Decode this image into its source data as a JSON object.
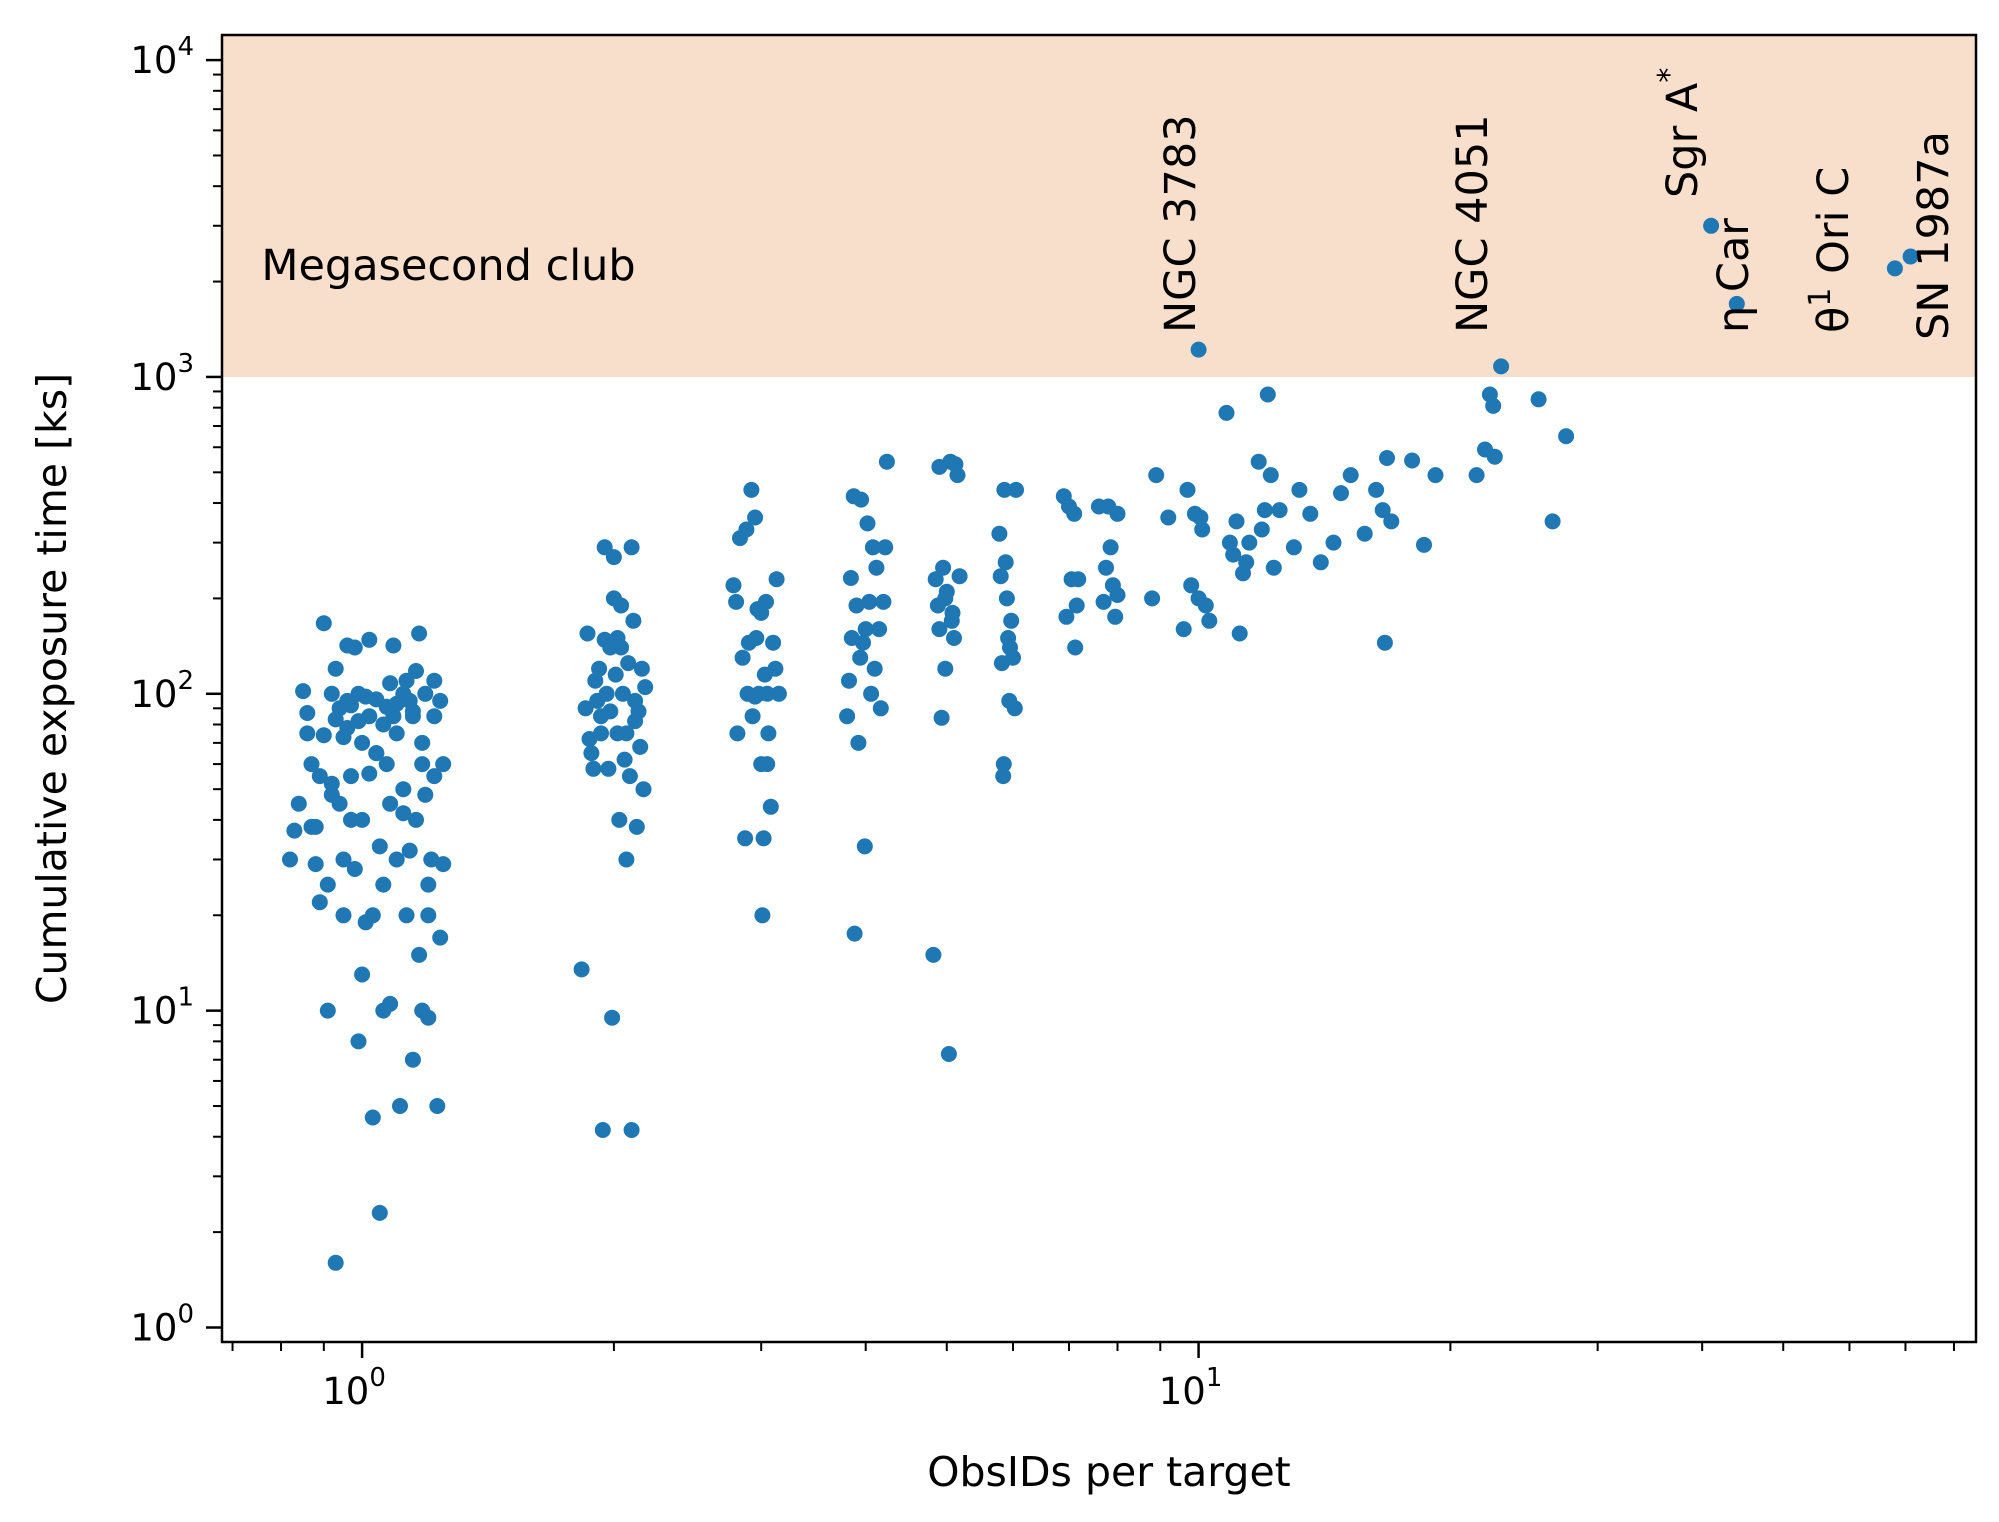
{
  "chart_data": {
    "type": "scatter",
    "xlabel": "ObsIDs per target",
    "ylabel": "Cumulative exposure time [ks]",
    "x_scale": "log",
    "y_scale": "log",
    "xlim": [
      0.68,
      85
    ],
    "ylim": [
      0.9,
      12000
    ],
    "grid": false,
    "marker_color": "#1f77b4",
    "x_ticks": [
      {
        "value": 1,
        "base": "10",
        "exp": "0"
      },
      {
        "value": 10,
        "base": "10",
        "exp": "1"
      }
    ],
    "y_ticks": [
      {
        "value": 1,
        "base": "10",
        "exp": "0"
      },
      {
        "value": 10,
        "base": "10",
        "exp": "1"
      },
      {
        "value": 100,
        "base": "10",
        "exp": "2"
      },
      {
        "value": 1000,
        "base": "10",
        "exp": "3"
      },
      {
        "value": 10000,
        "base": "10",
        "exp": "4"
      }
    ],
    "shaded_region": {
      "label": "Megasecond club",
      "y_from": 1000,
      "color": "#f7dfcc"
    },
    "annotations": [
      {
        "label": "NGC 3783",
        "x": 10.0,
        "y": 1220
      },
      {
        "label": "NGC 4051",
        "x": 23.0,
        "y": 1080
      },
      {
        "label": "Sgr A",
        "superscript": "*",
        "x": 41.0,
        "y": 3000
      },
      {
        "label": "η Car",
        "x": 44.0,
        "y": 1700
      },
      {
        "label": "θ",
        "superscript": "1",
        "suffix": " Ori C",
        "x": 68.0,
        "y": 2200
      },
      {
        "label": "SN 1987a",
        "x": 71.0,
        "y": 2400
      }
    ],
    "points": [
      [
        0.82,
        30
      ],
      [
        0.83,
        37
      ],
      [
        0.84,
        45
      ],
      [
        0.85,
        102
      ],
      [
        0.86,
        87
      ],
      [
        0.86,
        75
      ],
      [
        0.87,
        60
      ],
      [
        0.88,
        38
      ],
      [
        0.88,
        29
      ],
      [
        0.89,
        22
      ],
      [
        0.9,
        167
      ],
      [
        0.9,
        74
      ],
      [
        0.91,
        10
      ],
      [
        0.91,
        25
      ],
      [
        0.92,
        48
      ],
      [
        0.92,
        52
      ],
      [
        0.93,
        120
      ],
      [
        0.93,
        1.6
      ],
      [
        0.94,
        90
      ],
      [
        0.94,
        45
      ],
      [
        0.95,
        20
      ],
      [
        0.95,
        30
      ],
      [
        0.96,
        142
      ],
      [
        0.96,
        95
      ],
      [
        0.96,
        78
      ],
      [
        0.97,
        92
      ],
      [
        0.97,
        55
      ],
      [
        0.98,
        140
      ],
      [
        0.98,
        28
      ],
      [
        0.99,
        8
      ],
      [
        0.99,
        100
      ],
      [
        1.0,
        70
      ],
      [
        1.0,
        40
      ],
      [
        1.01,
        98
      ],
      [
        1.01,
        19
      ],
      [
        1.02,
        148
      ],
      [
        1.02,
        85
      ],
      [
        1.03,
        20
      ],
      [
        1.03,
        4.6
      ],
      [
        1.04,
        96
      ],
      [
        1.04,
        65
      ],
      [
        1.05,
        33
      ],
      [
        1.05,
        2.3
      ],
      [
        1.06,
        80
      ],
      [
        1.06,
        25
      ],
      [
        1.07,
        91
      ],
      [
        1.07,
        60
      ],
      [
        1.08,
        45
      ],
      [
        1.08,
        10.5
      ],
      [
        1.09,
        142
      ],
      [
        1.09,
        85
      ],
      [
        1.1,
        75
      ],
      [
        1.1,
        30
      ],
      [
        1.11,
        5
      ],
      [
        1.12,
        100
      ],
      [
        1.12,
        50
      ],
      [
        1.13,
        110
      ],
      [
        1.13,
        20
      ],
      [
        1.14,
        95
      ],
      [
        1.14,
        32
      ],
      [
        1.15,
        85
      ],
      [
        1.15,
        7
      ],
      [
        1.16,
        118
      ],
      [
        1.16,
        40
      ],
      [
        1.17,
        155
      ],
      [
        1.17,
        15
      ],
      [
        1.18,
        70
      ],
      [
        1.18,
        10
      ],
      [
        1.19,
        100
      ],
      [
        1.19,
        48
      ],
      [
        1.2,
        20
      ],
      [
        1.2,
        9.5
      ],
      [
        1.21,
        30
      ],
      [
        1.22,
        110
      ],
      [
        1.22,
        55
      ],
      [
        1.23,
        5
      ],
      [
        1.24,
        95
      ],
      [
        1.24,
        17
      ],
      [
        1.25,
        60
      ],
      [
        1.25,
        29
      ],
      [
        0.87,
        38
      ],
      [
        0.89,
        55
      ],
      [
        0.92,
        100
      ],
      [
        0.93,
        83
      ],
      [
        0.95,
        73
      ],
      [
        0.97,
        40
      ],
      [
        0.99,
        82
      ],
      [
        1.0,
        13
      ],
      [
        1.02,
        56
      ],
      [
        1.04,
        65
      ],
      [
        1.06,
        10
      ],
      [
        1.08,
        108
      ],
      [
        1.1,
        93
      ],
      [
        1.12,
        42
      ],
      [
        1.15,
        88
      ],
      [
        1.18,
        60
      ],
      [
        1.2,
        25
      ],
      [
        1.22,
        85
      ],
      [
        1.83,
        13.5
      ],
      [
        1.85,
        90
      ],
      [
        1.86,
        155
      ],
      [
        1.87,
        72
      ],
      [
        1.88,
        65
      ],
      [
        1.89,
        58
      ],
      [
        1.9,
        110
      ],
      [
        1.91,
        95
      ],
      [
        1.92,
        120
      ],
      [
        1.93,
        75
      ],
      [
        1.94,
        4.2
      ],
      [
        1.95,
        290
      ],
      [
        1.95,
        148
      ],
      [
        1.96,
        100
      ],
      [
        1.97,
        58
      ],
      [
        1.98,
        140
      ],
      [
        1.98,
        88
      ],
      [
        1.99,
        9.5
      ],
      [
        2.0,
        270
      ],
      [
        2.0,
        200
      ],
      [
        2.01,
        115
      ],
      [
        2.02,
        75
      ],
      [
        2.03,
        40
      ],
      [
        2.04,
        190
      ],
      [
        2.04,
        140
      ],
      [
        2.05,
        100
      ],
      [
        2.06,
        62
      ],
      [
        2.07,
        30
      ],
      [
        2.08,
        125
      ],
      [
        2.09,
        55
      ],
      [
        2.1,
        4.2
      ],
      [
        2.1,
        290
      ],
      [
        2.11,
        170
      ],
      [
        2.12,
        95
      ],
      [
        2.13,
        38
      ],
      [
        2.14,
        88
      ],
      [
        2.15,
        68
      ],
      [
        2.16,
        120
      ],
      [
        2.17,
        50
      ],
      [
        2.18,
        105
      ],
      [
        1.93,
        85
      ],
      [
        2.02,
        150
      ],
      [
        2.07,
        75
      ],
      [
        2.12,
        82
      ],
      [
        2.78,
        220
      ],
      [
        2.8,
        195
      ],
      [
        2.81,
        75
      ],
      [
        2.83,
        310
      ],
      [
        2.85,
        130
      ],
      [
        2.87,
        35
      ],
      [
        2.89,
        100
      ],
      [
        2.9,
        145
      ],
      [
        2.92,
        440
      ],
      [
        2.93,
        85
      ],
      [
        2.95,
        360
      ],
      [
        2.96,
        150
      ],
      [
        2.97,
        185
      ],
      [
        2.98,
        100
      ],
      [
        3.0,
        60
      ],
      [
        3.01,
        20
      ],
      [
        3.02,
        35
      ],
      [
        3.03,
        115
      ],
      [
        3.04,
        195
      ],
      [
        3.05,
        100
      ],
      [
        3.06,
        75
      ],
      [
        3.08,
        44
      ],
      [
        3.1,
        145
      ],
      [
        3.12,
        120
      ],
      [
        3.13,
        230
      ],
      [
        3.15,
        100
      ],
      [
        2.88,
        330
      ],
      [
        2.95,
        98
      ],
      [
        3.05,
        60
      ],
      [
        3.0,
        180
      ],
      [
        3.8,
        85
      ],
      [
        3.82,
        110
      ],
      [
        3.84,
        232
      ],
      [
        3.85,
        150
      ],
      [
        3.87,
        420
      ],
      [
        3.88,
        17.5
      ],
      [
        3.9,
        190
      ],
      [
        3.92,
        70
      ],
      [
        3.94,
        130
      ],
      [
        3.95,
        410
      ],
      [
        3.97,
        145
      ],
      [
        3.99,
        33
      ],
      [
        4.0,
        160
      ],
      [
        4.02,
        345
      ],
      [
        4.04,
        195
      ],
      [
        4.06,
        100
      ],
      [
        4.08,
        290
      ],
      [
        4.1,
        120
      ],
      [
        4.12,
        250
      ],
      [
        4.15,
        160
      ],
      [
        4.17,
        90
      ],
      [
        4.2,
        195
      ],
      [
        4.22,
        290
      ],
      [
        4.24,
        540
      ],
      [
        4.82,
        15
      ],
      [
        4.85,
        230
      ],
      [
        4.88,
        190
      ],
      [
        4.9,
        520
      ],
      [
        4.93,
        84
      ],
      [
        4.95,
        250
      ],
      [
        4.98,
        120
      ],
      [
        5.0,
        210
      ],
      [
        5.03,
        7.3
      ],
      [
        5.05,
        540
      ],
      [
        5.07,
        170
      ],
      [
        5.1,
        150
      ],
      [
        5.12,
        530
      ],
      [
        5.15,
        490
      ],
      [
        5.18,
        235
      ],
      [
        4.9,
        160
      ],
      [
        4.98,
        200
      ],
      [
        5.08,
        180
      ],
      [
        5.78,
        320
      ],
      [
        5.8,
        235
      ],
      [
        5.82,
        125
      ],
      [
        5.84,
        55
      ],
      [
        5.86,
        440
      ],
      [
        5.88,
        260
      ],
      [
        5.9,
        200
      ],
      [
        5.92,
        150
      ],
      [
        5.94,
        95
      ],
      [
        5.97,
        170
      ],
      [
        6.0,
        130
      ],
      [
        6.03,
        90
      ],
      [
        6.05,
        440
      ],
      [
        5.85,
        60
      ],
      [
        5.95,
        140
      ],
      [
        6.9,
        420
      ],
      [
        6.95,
        175
      ],
      [
        7.0,
        390
      ],
      [
        7.05,
        230
      ],
      [
        7.1,
        370
      ],
      [
        7.12,
        140
      ],
      [
        7.15,
        190
      ],
      [
        7.18,
        230
      ],
      [
        7.6,
        390
      ],
      [
        7.7,
        195
      ],
      [
        7.75,
        250
      ],
      [
        7.8,
        390
      ],
      [
        7.85,
        290
      ],
      [
        7.9,
        220
      ],
      [
        7.95,
        175
      ],
      [
        8.0,
        370
      ],
      [
        8.0,
        205
      ],
      [
        8.8,
        200
      ],
      [
        8.9,
        490
      ],
      [
        9.2,
        360
      ],
      [
        9.6,
        160
      ],
      [
        9.7,
        440
      ],
      [
        9.8,
        220
      ],
      [
        9.9,
        370
      ],
      [
        10.0,
        200
      ],
      [
        10.05,
        360
      ],
      [
        10.1,
        330
      ],
      [
        10.2,
        190
      ],
      [
        10.3,
        170
      ],
      [
        10.8,
        770
      ],
      [
        10.9,
        300
      ],
      [
        11.0,
        275
      ],
      [
        11.1,
        350
      ],
      [
        11.2,
        155
      ],
      [
        11.3,
        240
      ],
      [
        11.4,
        260
      ],
      [
        11.5,
        300
      ],
      [
        11.8,
        540
      ],
      [
        11.9,
        330
      ],
      [
        12.0,
        380
      ],
      [
        12.1,
        880
      ],
      [
        12.2,
        490
      ],
      [
        12.3,
        250
      ],
      [
        12.5,
        380
      ],
      [
        13.0,
        290
      ],
      [
        13.2,
        440
      ],
      [
        13.6,
        370
      ],
      [
        14.0,
        260
      ],
      [
        14.5,
        300
      ],
      [
        14.8,
        430
      ],
      [
        15.2,
        490
      ],
      [
        15.8,
        320
      ],
      [
        16.3,
        440
      ],
      [
        16.6,
        380
      ],
      [
        16.8,
        555
      ],
      [
        17.0,
        350
      ],
      [
        18.0,
        545
      ],
      [
        18.6,
        295
      ],
      [
        19.2,
        490
      ],
      [
        21.5,
        490
      ],
      [
        22.0,
        590
      ],
      [
        22.3,
        880
      ],
      [
        22.5,
        810
      ],
      [
        22.6,
        560
      ],
      [
        25.5,
        850
      ],
      [
        26.5,
        350
      ],
      [
        27.5,
        650
      ],
      [
        16.7,
        145
      ]
    ]
  }
}
